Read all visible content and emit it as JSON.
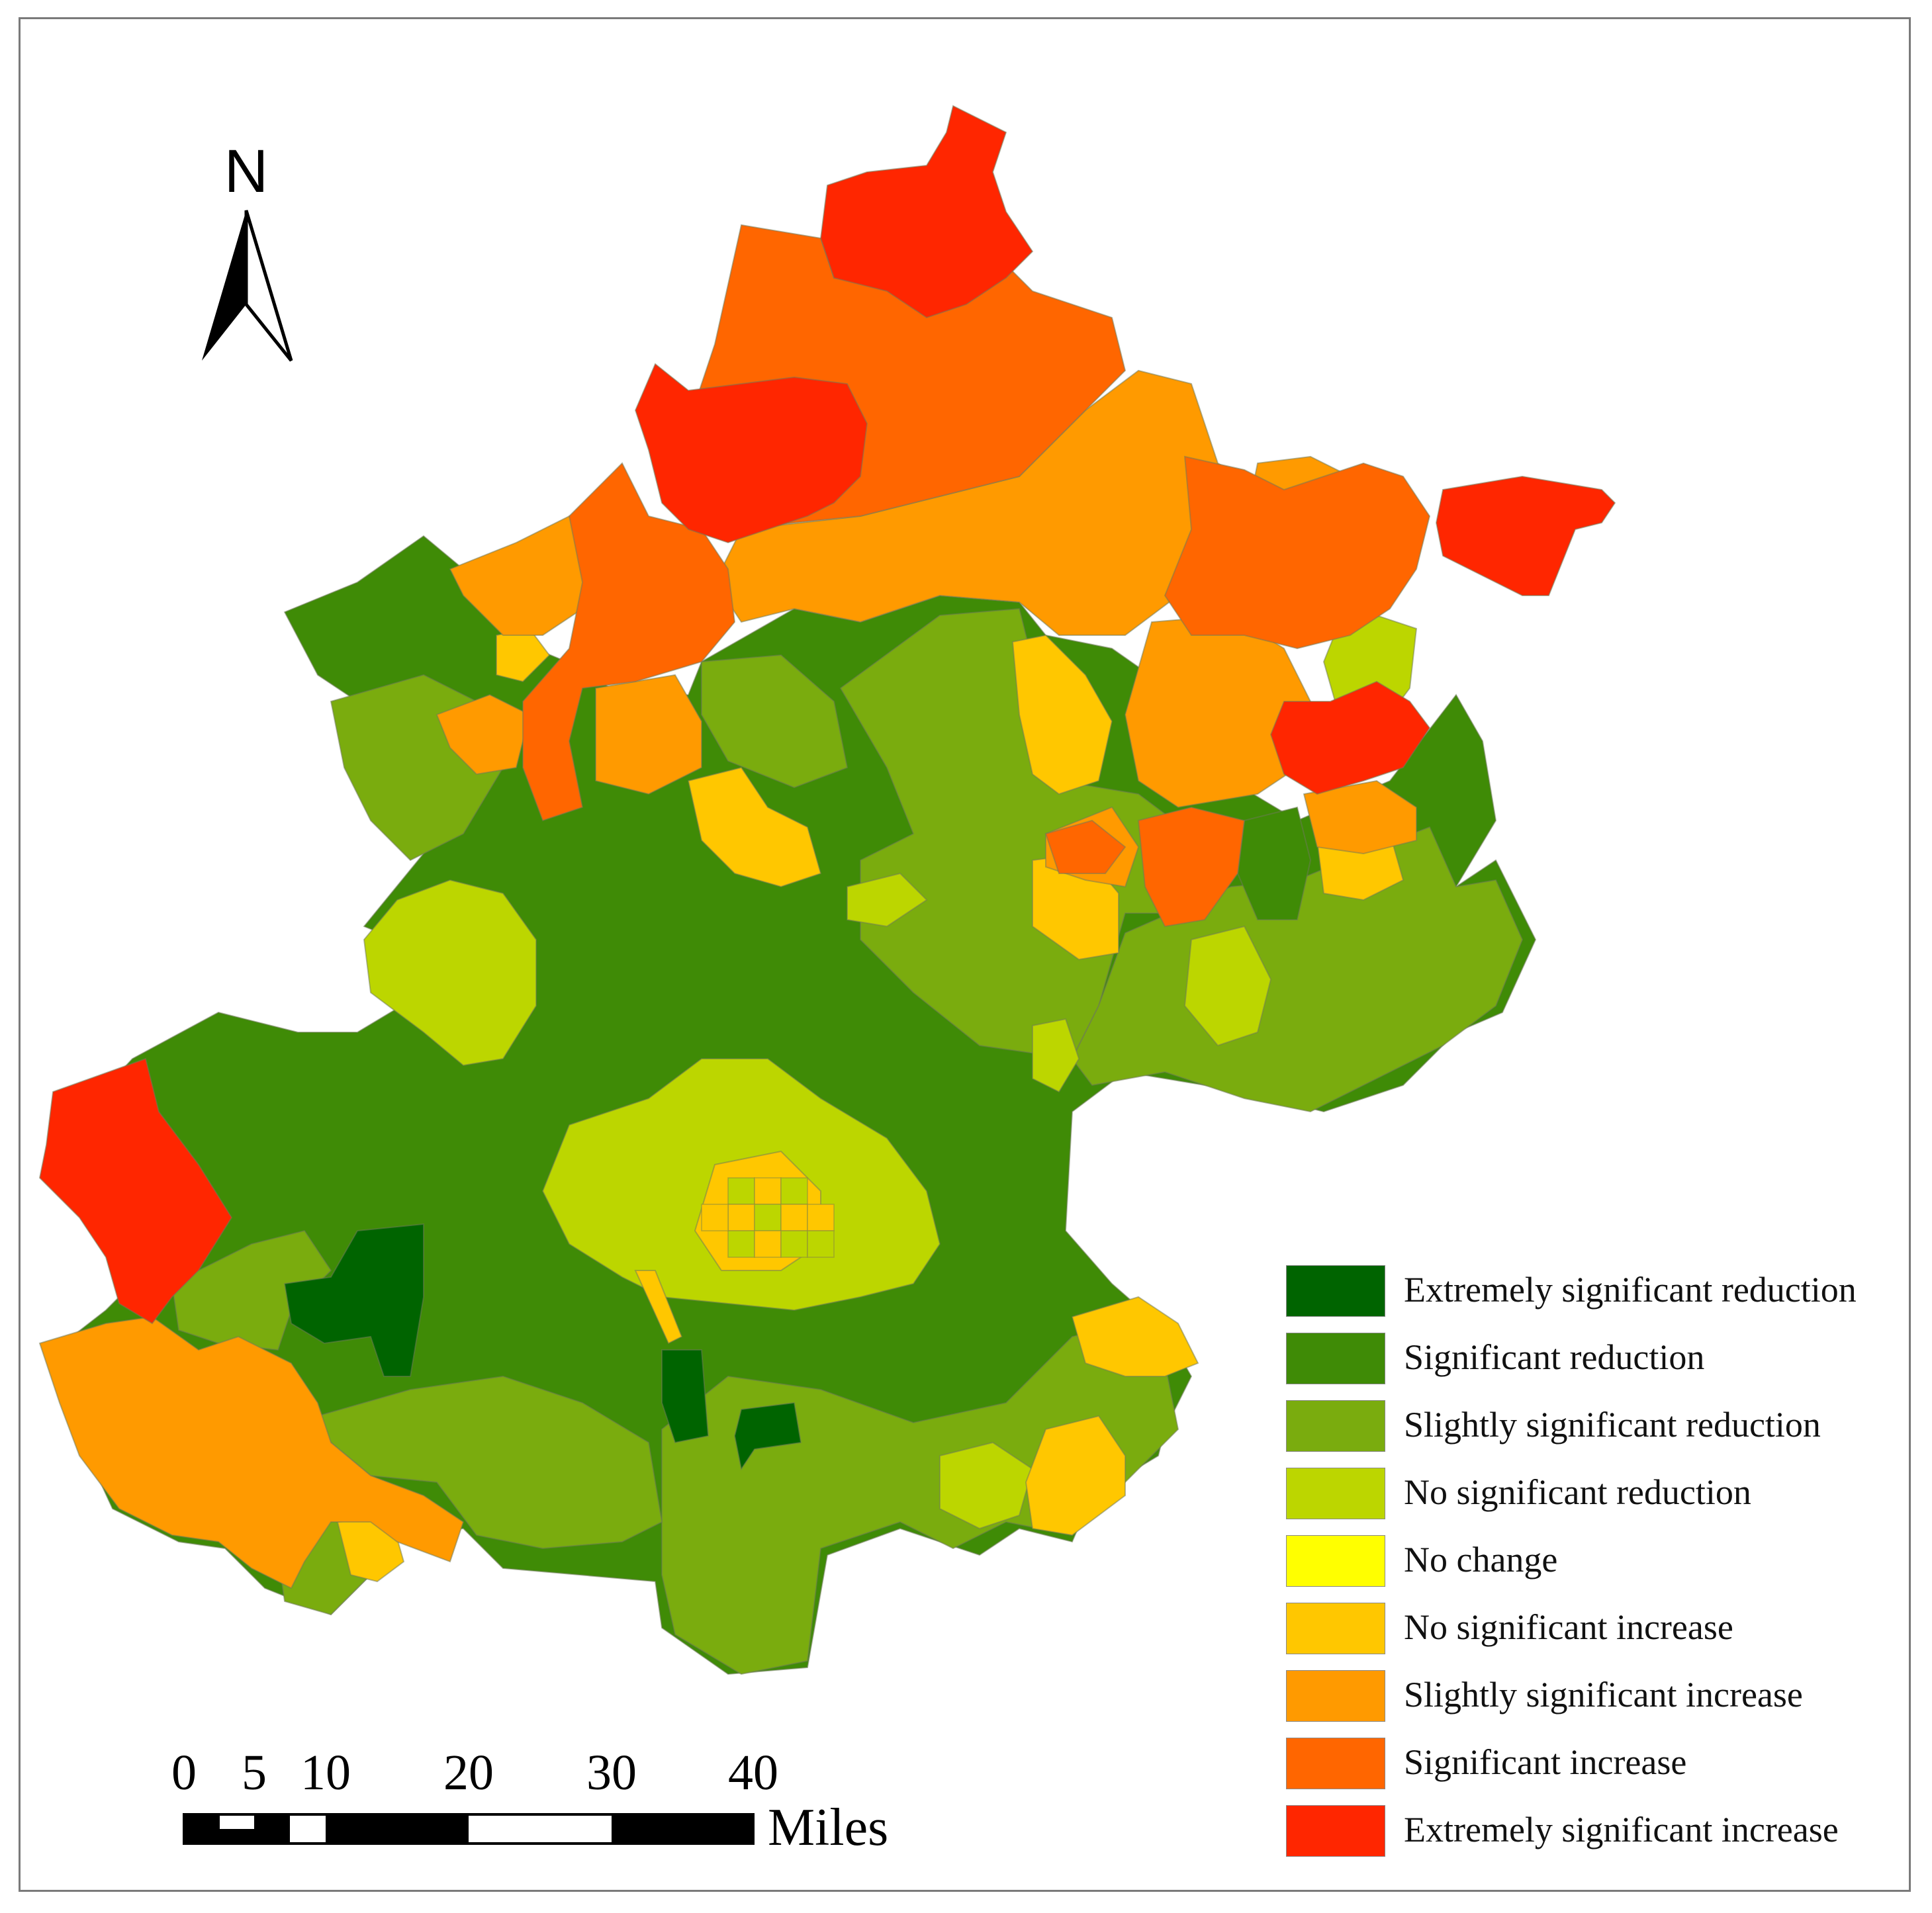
{
  "map": {
    "north_label": "N",
    "scale_bar": {
      "ticks": [
        "0",
        "5",
        "10",
        "20",
        "30",
        "40"
      ],
      "unit": "Miles"
    },
    "legend": [
      {
        "label": "Extremely significant reduction",
        "color": "#006400"
      },
      {
        "label": "Significant reduction",
        "color": "#3f8b06"
      },
      {
        "label": "Slightly significant reduction",
        "color": "#7aac0e"
      },
      {
        "label": "No significant reduction",
        "color": "#bcd600"
      },
      {
        "label": "No change",
        "color": "#ffff00"
      },
      {
        "label": "No significant increase",
        "color": "#ffc700"
      },
      {
        "label": "Slightly significant increase",
        "color": "#ff9a00"
      },
      {
        "label": "Significant increase",
        "color": "#ff6600"
      },
      {
        "label": "Extremely significant increase",
        "color": "#ff2600"
      }
    ]
  }
}
